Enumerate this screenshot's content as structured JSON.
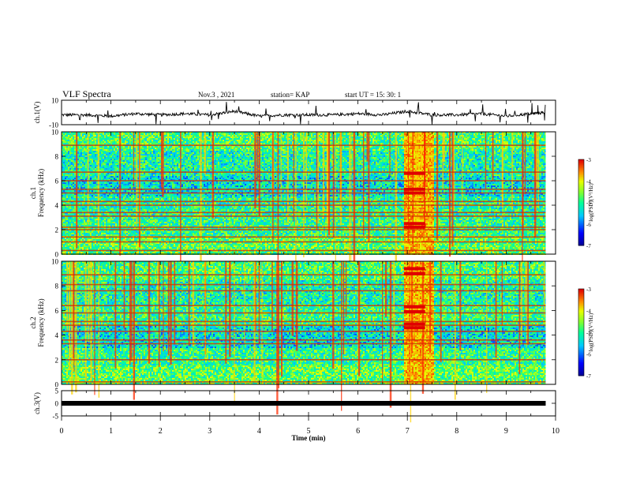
{
  "header": {
    "title": "VLF Spectra",
    "date": "Nov.3 , 2021",
    "station": "station= KAP",
    "start": "start UT = 15: 30: 1"
  },
  "colors": {
    "background": "#ffffff",
    "axis": "#000000",
    "trace": "#000000"
  },
  "chart_data": [
    {
      "type": "line",
      "title": "",
      "ylabel": "ch.1(V)",
      "xlabel": "",
      "xlim": [
        0,
        10
      ],
      "ylim": [
        -10,
        10
      ],
      "yticks": [
        "10",
        "-10"
      ],
      "description_of_trace": "noisy waveform oscillating roughly between -3 and 1 V",
      "series": [
        {
          "x": [
            0,
            0.5,
            1,
            1.5,
            2,
            2.5,
            3,
            3.5,
            4,
            4.5,
            5,
            5.5,
            6,
            6.5,
            7,
            7.5,
            8,
            8.5,
            9,
            9.5,
            9.8
          ],
          "values": [
            -2,
            -2,
            -3,
            -1,
            -2,
            -1,
            -2,
            1,
            -3,
            -2,
            -2,
            -2,
            -1,
            -2,
            1,
            -2,
            -2,
            -1,
            -3,
            -1,
            0
          ]
        }
      ]
    },
    {
      "type": "heatmap",
      "title": "",
      "ylabel": "ch.1\nFrequency (kHz)",
      "xlabel": "",
      "xlim": [
        0,
        10
      ],
      "ylim": [
        0,
        10
      ],
      "yticks": [
        "0",
        "2",
        "4",
        "6",
        "8",
        "10"
      ],
      "colorbar": {
        "label": "log(PSD)(V²/Hz)",
        "range": [
          -7,
          -3
        ],
        "ticks": [
          "-3",
          "-4",
          "-5",
          "-6",
          "-7"
        ]
      },
      "data_end_min": 9.8,
      "bright_band_min": [
        6.93,
        7.52
      ],
      "horizontal_lines_khz": [
        0.3,
        1.0,
        1.4,
        2.0,
        2.2,
        3.1,
        3.4,
        4.0,
        4.3,
        5.0,
        5.3,
        6.0,
        6.7,
        8.9
      ]
    },
    {
      "type": "heatmap",
      "title": "",
      "ylabel": "ch.2\nFrequency (kHz)",
      "xlabel": "",
      "xlim": [
        0,
        10
      ],
      "ylim": [
        0,
        10
      ],
      "yticks": [
        "0",
        "2",
        "4",
        "6",
        "8",
        "10"
      ],
      "colorbar": {
        "label": "log(PSD)(V²/Hz)",
        "range": [
          -7,
          -3
        ],
        "ticks": [
          "-3",
          "-4",
          "-5",
          "-6",
          "-7"
        ]
      },
      "data_end_min": 9.8,
      "bright_band_min": [
        6.93,
        7.52
      ],
      "horizontal_lines_khz": [
        0.2,
        2.0,
        3.3,
        3.6,
        4.3,
        4.8,
        5.1,
        5.8,
        6.4,
        7.6,
        8.1,
        8.9
      ]
    },
    {
      "type": "line",
      "title": "",
      "ylabel": "ch.3(V)",
      "xlabel": "Time (min)",
      "xlim": [
        0,
        10
      ],
      "ylim": [
        -5,
        5
      ],
      "yticks": [
        "5",
        "0",
        "-5"
      ],
      "xticks": [
        "0",
        "1",
        "2",
        "3",
        "4",
        "5",
        "6",
        "7",
        "8",
        "9",
        "10"
      ],
      "series": [
        {
          "x": [
            0,
            9.8
          ],
          "values": [
            0,
            0
          ]
        }
      ]
    }
  ]
}
